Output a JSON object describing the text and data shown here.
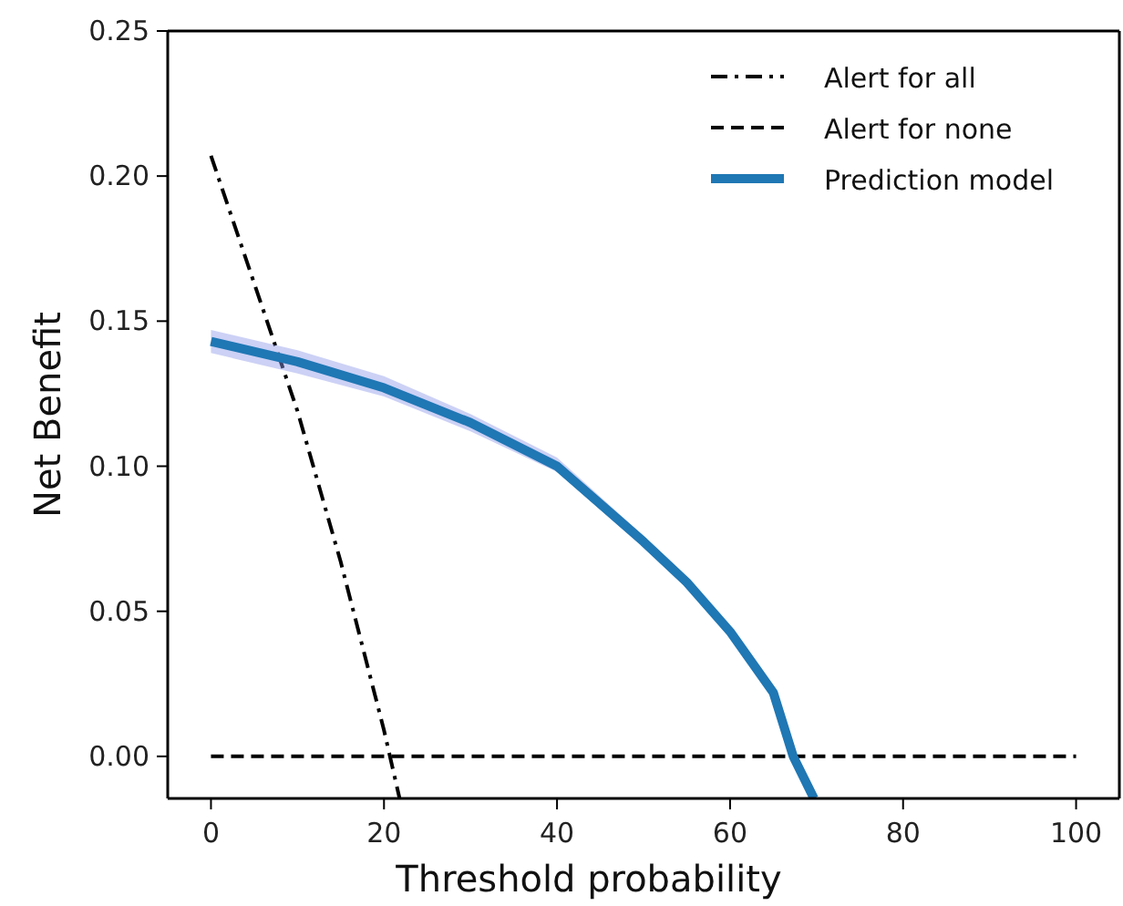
{
  "chart_data": {
    "type": "line",
    "xlabel": "Threshold probability",
    "ylabel": "Net Benefit",
    "xlim": [
      -5,
      105
    ],
    "ylim": [
      -0.0145,
      0.25
    ],
    "xticks": [
      0,
      20,
      40,
      60,
      80,
      100
    ],
    "yticks": [
      {
        "value": 0,
        "label": "0.00"
      },
      {
        "value": 0.05,
        "label": "0.05"
      },
      {
        "value": 0.1,
        "label": "0.10"
      },
      {
        "value": 0.15,
        "label": "0.15"
      },
      {
        "value": 0.2,
        "label": "0.20"
      },
      {
        "value": 0.25,
        "label": "0.25"
      }
    ],
    "grid": false,
    "legend": "top right",
    "marker": "none",
    "series": [
      {
        "name": "Alert for all",
        "color": "#000000",
        "line_style": "dashdot",
        "x": [
          0,
          10,
          15,
          20,
          21.8
        ],
        "values": [
          0.207,
          0.119,
          0.067,
          0.009,
          -0.0145
        ]
      },
      {
        "name": "Alert for none",
        "color": "#000000",
        "line_style": "dashed",
        "x": [
          0,
          100
        ],
        "values": [
          0,
          0
        ]
      },
      {
        "name": "Prediction model",
        "color": "#1f77b4",
        "line_style": "solid",
        "x": [
          0,
          10,
          20,
          30,
          40,
          50,
          55,
          60,
          65,
          67.3,
          69.7
        ],
        "values": [
          0.143,
          0.136,
          0.127,
          0.115,
          0.1,
          0.074,
          0.06,
          0.043,
          0.022,
          0,
          -0.0145
        ],
        "lower": [
          0.139,
          0.132,
          0.124,
          0.112,
          0.098,
          0.072,
          0.058,
          0.041,
          0.02,
          -0.002,
          -0.0145
        ],
        "upper": [
          0.147,
          0.14,
          0.131,
          0.118,
          0.103,
          0.076,
          0.062,
          0.045,
          0.024,
          0.002,
          -0.0145
        ]
      }
    ]
  }
}
